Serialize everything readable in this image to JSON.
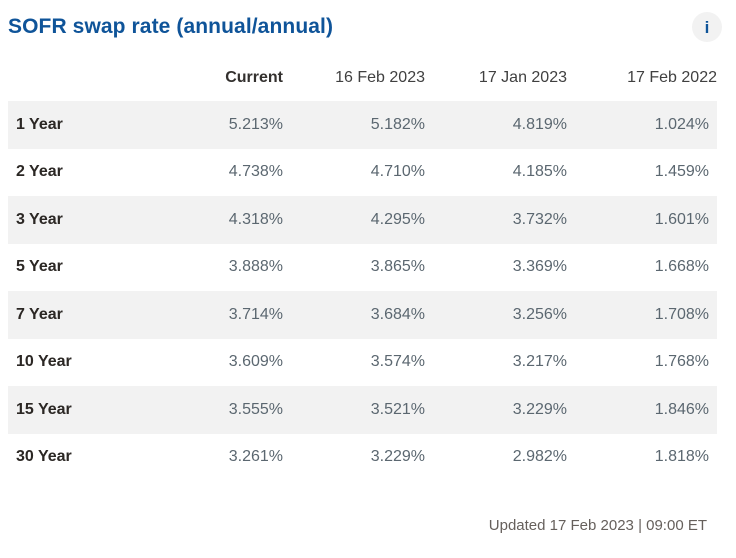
{
  "header": {
    "title": "SOFR swap rate (annual/annual)",
    "info_glyph": "i"
  },
  "table": {
    "columns": [
      "",
      "Current",
      "16 Feb 2023",
      "17 Jan 2023",
      "17 Feb 2022"
    ],
    "rows": [
      {
        "label": "1 Year",
        "values": [
          "5.213%",
          "5.182%",
          "4.819%",
          "1.024%"
        ]
      },
      {
        "label": "2 Year",
        "values": [
          "4.738%",
          "4.710%",
          "4.185%",
          "1.459%"
        ]
      },
      {
        "label": "3 Year",
        "values": [
          "4.318%",
          "4.295%",
          "3.732%",
          "1.601%"
        ]
      },
      {
        "label": "5 Year",
        "values": [
          "3.888%",
          "3.865%",
          "3.369%",
          "1.668%"
        ]
      },
      {
        "label": "7 Year",
        "values": [
          "3.714%",
          "3.684%",
          "3.256%",
          "1.708%"
        ]
      },
      {
        "label": "10 Year",
        "values": [
          "3.609%",
          "3.574%",
          "3.217%",
          "1.768%"
        ]
      },
      {
        "label": "15 Year",
        "values": [
          "3.555%",
          "3.521%",
          "3.229%",
          "1.846%"
        ]
      },
      {
        "label": "30 Year",
        "values": [
          "3.261%",
          "3.229%",
          "2.982%",
          "1.818%"
        ]
      }
    ]
  },
  "footer": {
    "updated": "Updated 17 Feb 2023 | 09:00 ET"
  },
  "colors": {
    "accent_blue": "#0f5499",
    "stripe_gray": "#f2f2f2",
    "value_gray": "#5b6770",
    "footer_gray": "#66605c"
  }
}
